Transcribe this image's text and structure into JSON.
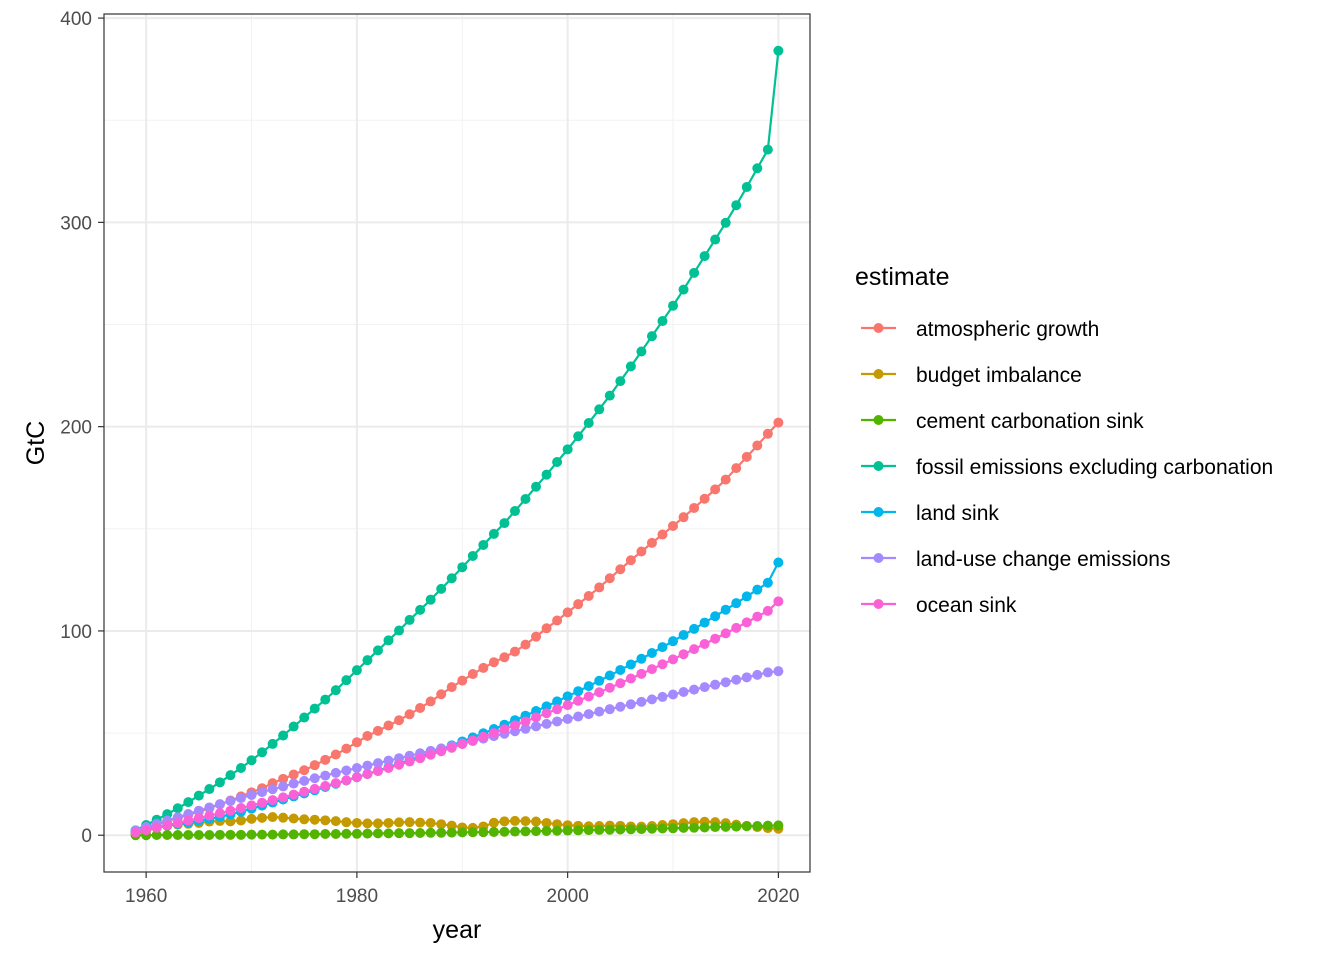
{
  "chart_data": {
    "type": "line",
    "title": "",
    "xlabel": "year",
    "ylabel": "GtC",
    "xlim": [
      1956,
      2023
    ],
    "ylim": [
      -18,
      402
    ],
    "x_ticks": [
      1960,
      1980,
      2000,
      2020
    ],
    "y_ticks": [
      0,
      100,
      200,
      300,
      400
    ],
    "grid": true,
    "theme": "bw",
    "legend": {
      "title": "estimate",
      "position": "right"
    },
    "x": [
      1959,
      1960,
      1961,
      1962,
      1963,
      1964,
      1965,
      1966,
      1967,
      1968,
      1969,
      1970,
      1971,
      1972,
      1973,
      1974,
      1975,
      1976,
      1977,
      1978,
      1979,
      1980,
      1981,
      1982,
      1983,
      1984,
      1985,
      1986,
      1987,
      1988,
      1989,
      1990,
      1991,
      1992,
      1993,
      1994,
      1995,
      1996,
      1997,
      1998,
      1999,
      2000,
      2001,
      2002,
      2003,
      2004,
      2005,
      2006,
      2007,
      2008,
      2009,
      2010,
      2011,
      2012,
      2013,
      2014,
      2015,
      2016,
      2017,
      2018,
      2019,
      2020
    ],
    "series": [
      {
        "name": "atmospheric growth",
        "color": "#F8766D",
        "values": [
          2.0,
          3.5,
          5.2,
          6.9,
          8.4,
          10.0,
          11.6,
          13.2,
          15.1,
          17.0,
          19.0,
          21.0,
          23.0,
          25.5,
          27.6,
          29.7,
          31.8,
          34.3,
          36.9,
          39.5,
          42.4,
          45.5,
          48.6,
          51.1,
          53.7,
          56.3,
          59.2,
          62.3,
          65.5,
          69.0,
          72.5,
          75.7,
          78.9,
          81.9,
          84.7,
          87.1,
          89.9,
          93.3,
          97.2,
          101.3,
          105.1,
          109.1,
          113.1,
          117.1,
          121.3,
          125.8,
          130.2,
          134.6,
          138.9,
          143.1,
          147.2,
          151.4,
          155.7,
          160.2,
          164.7,
          169.3,
          174.1,
          179.7,
          185.2,
          190.8,
          196.5,
          202.0
        ]
      },
      {
        "name": "budget imbalance",
        "color": "#C49A00",
        "values": [
          0.5,
          2.2,
          3.6,
          4.6,
          5.2,
          5.6,
          6.0,
          6.7,
          7.0,
          6.8,
          7.2,
          8.0,
          8.5,
          8.9,
          8.6,
          8.2,
          7.8,
          7.6,
          7.3,
          6.9,
          6.4,
          6.0,
          5.8,
          5.8,
          6.0,
          6.3,
          6.4,
          6.2,
          6.0,
          5.4,
          4.7,
          3.8,
          3.6,
          4.3,
          6.1,
          6.8,
          7.0,
          6.9,
          6.7,
          6.0,
          5.4,
          4.9,
          4.6,
          4.4,
          4.5,
          4.7,
          4.6,
          4.3,
          4.2,
          4.5,
          5.0,
          5.4,
          5.9,
          6.4,
          6.6,
          6.4,
          5.9,
          5.2,
          4.6,
          4.0,
          3.5,
          3.2
        ]
      },
      {
        "name": "cement carbonation sink",
        "color": "#53B400",
        "values": [
          0.0,
          0.0,
          0.1,
          0.1,
          0.1,
          0.1,
          0.1,
          0.1,
          0.2,
          0.2,
          0.2,
          0.3,
          0.3,
          0.3,
          0.4,
          0.4,
          0.5,
          0.5,
          0.6,
          0.6,
          0.7,
          0.7,
          0.8,
          0.9,
          0.9,
          1.0,
          1.0,
          1.1,
          1.2,
          1.2,
          1.3,
          1.4,
          1.5,
          1.5,
          1.6,
          1.7,
          1.8,
          1.9,
          2.0,
          2.1,
          2.2,
          2.3,
          2.4,
          2.5,
          2.6,
          2.7,
          2.8,
          2.9,
          3.0,
          3.2,
          3.3,
          3.4,
          3.6,
          3.7,
          3.8,
          4.0,
          4.1,
          4.2,
          4.4,
          4.5,
          4.7,
          4.8
        ]
      },
      {
        "name": "fossil emissions excluding carbonation",
        "color": "#00C094",
        "values": [
          2.4,
          5.0,
          7.6,
          10.3,
          13.2,
          16.2,
          19.4,
          22.6,
          25.9,
          29.4,
          32.9,
          36.7,
          40.6,
          44.7,
          48.8,
          53.2,
          57.6,
          62.0,
          66.4,
          71.0,
          75.9,
          80.8,
          85.7,
          90.5,
          95.4,
          100.2,
          105.4,
          110.3,
          115.3,
          120.6,
          125.8,
          131.2,
          136.7,
          142.1,
          147.5,
          152.8,
          158.7,
          164.6,
          170.6,
          176.5,
          182.7,
          188.9,
          195.3,
          201.8,
          208.5,
          215.2,
          222.3,
          229.5,
          236.8,
          244.3,
          251.7,
          259.2,
          267.1,
          275.3,
          283.5,
          291.6,
          299.8,
          308.4,
          317.3,
          326.5,
          335.6,
          384.0
        ]
      },
      {
        "name": "land sink",
        "color": "#00B6EB",
        "values": [
          1.5,
          2.8,
          4.0,
          4.8,
          5.5,
          6.2,
          7.0,
          8.0,
          9.0,
          10.2,
          11.5,
          13.0,
          14.5,
          16.0,
          17.5,
          19.0,
          20.5,
          22.0,
          23.6,
          25.2,
          26.8,
          28.4,
          30.0,
          31.6,
          33.3,
          35.0,
          36.7,
          38.5,
          40.3,
          42.1,
          44.0,
          45.9,
          47.9,
          49.9,
          52.0,
          54.1,
          56.3,
          58.5,
          60.8,
          63.1,
          65.5,
          68.0,
          70.5,
          73.0,
          75.6,
          78.2,
          80.9,
          83.6,
          86.4,
          89.2,
          92.1,
          95.0,
          98.0,
          101.0,
          104.1,
          107.2,
          110.4,
          113.6,
          116.9,
          120.2,
          123.6,
          133.5
        ]
      },
      {
        "name": "land-use change emissions",
        "color": "#A58AFF",
        "values": [
          2.3,
          4.0,
          5.6,
          7.2,
          8.8,
          10.4,
          12.0,
          13.6,
          15.2,
          16.7,
          18.2,
          19.7,
          21.1,
          22.5,
          23.9,
          25.3,
          26.6,
          27.9,
          29.2,
          30.5,
          31.7,
          32.9,
          34.1,
          35.3,
          36.5,
          37.7,
          38.9,
          40.1,
          41.3,
          42.5,
          43.7,
          44.9,
          46.1,
          47.3,
          48.5,
          49.7,
          50.9,
          52.1,
          53.3,
          54.5,
          55.7,
          56.9,
          58.1,
          59.3,
          60.5,
          61.7,
          62.9,
          64.1,
          65.3,
          66.5,
          67.7,
          68.9,
          70.1,
          71.3,
          72.5,
          73.7,
          74.9,
          76.1,
          77.3,
          78.5,
          79.7,
          80.3
        ]
      },
      {
        "name": "ocean sink",
        "color": "#FB61D7",
        "values": [
          1.3,
          2.5,
          3.7,
          4.9,
          6.0,
          7.2,
          8.4,
          9.6,
          10.8,
          12.0,
          13.3,
          14.6,
          15.9,
          17.2,
          18.5,
          19.9,
          21.3,
          22.7,
          24.1,
          25.5,
          26.9,
          28.4,
          29.9,
          31.4,
          32.9,
          34.5,
          36.1,
          37.7,
          39.4,
          41.1,
          42.8,
          44.6,
          46.4,
          48.2,
          50.0,
          51.9,
          53.8,
          55.7,
          57.7,
          59.7,
          61.7,
          63.7,
          65.8,
          67.9,
          70.0,
          72.2,
          74.4,
          76.7,
          79.0,
          81.3,
          83.7,
          86.1,
          88.6,
          91.1,
          93.6,
          96.2,
          98.8,
          101.5,
          104.2,
          107.0,
          109.8,
          114.5
        ]
      }
    ]
  }
}
